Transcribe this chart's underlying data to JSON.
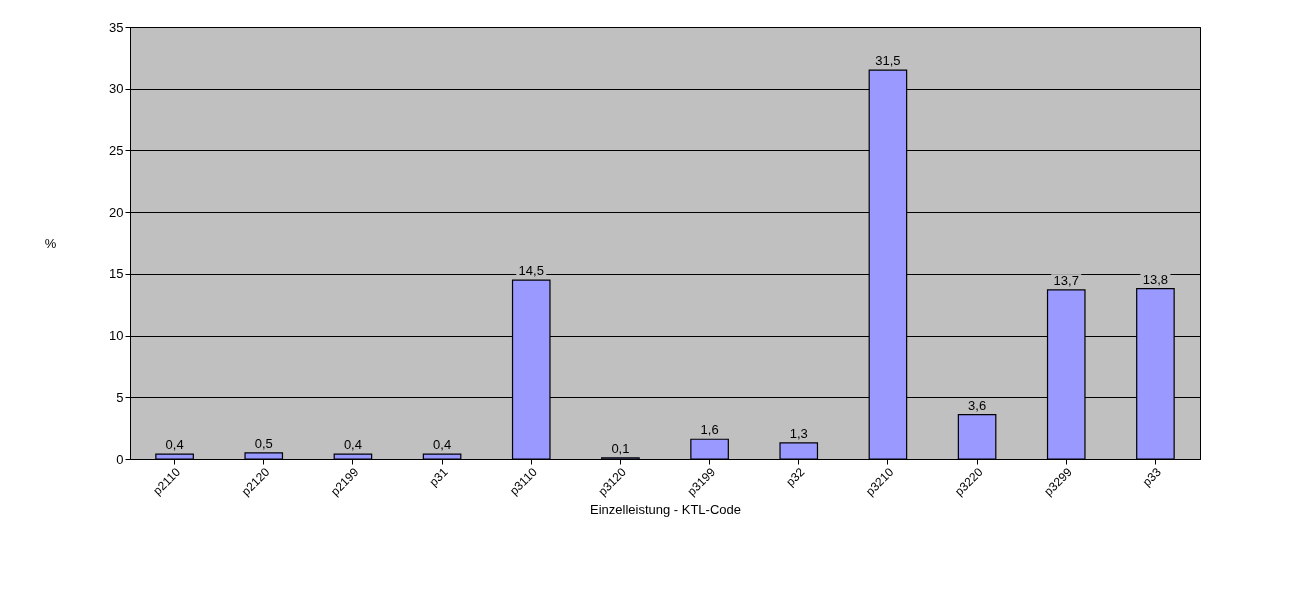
{
  "chart_data": {
    "type": "bar",
    "xlabel": "Einzelleistung - KTL-Code",
    "ylabel": "%",
    "categories": [
      "p2110",
      "p2120",
      "p2199",
      "p31",
      "p3110",
      "p3120",
      "p3199",
      "p32",
      "p3210",
      "p3220",
      "p3299",
      "p33"
    ],
    "values": [
      0.4,
      0.5,
      0.4,
      0.4,
      14.5,
      0.1,
      1.6,
      1.3,
      31.5,
      3.6,
      13.7,
      13.8
    ],
    "value_labels": [
      "0,4",
      "0,5",
      "0,4",
      "0,4",
      "14,5",
      "0,1",
      "1,6",
      "1,3",
      "31,5",
      "3,6",
      "13,7",
      "13,8"
    ],
    "color": "#9999ff",
    "ylim": [
      0,
      35
    ],
    "yticks": [
      0,
      5,
      10,
      15,
      20,
      25,
      30,
      35
    ],
    "grid": "y"
  }
}
